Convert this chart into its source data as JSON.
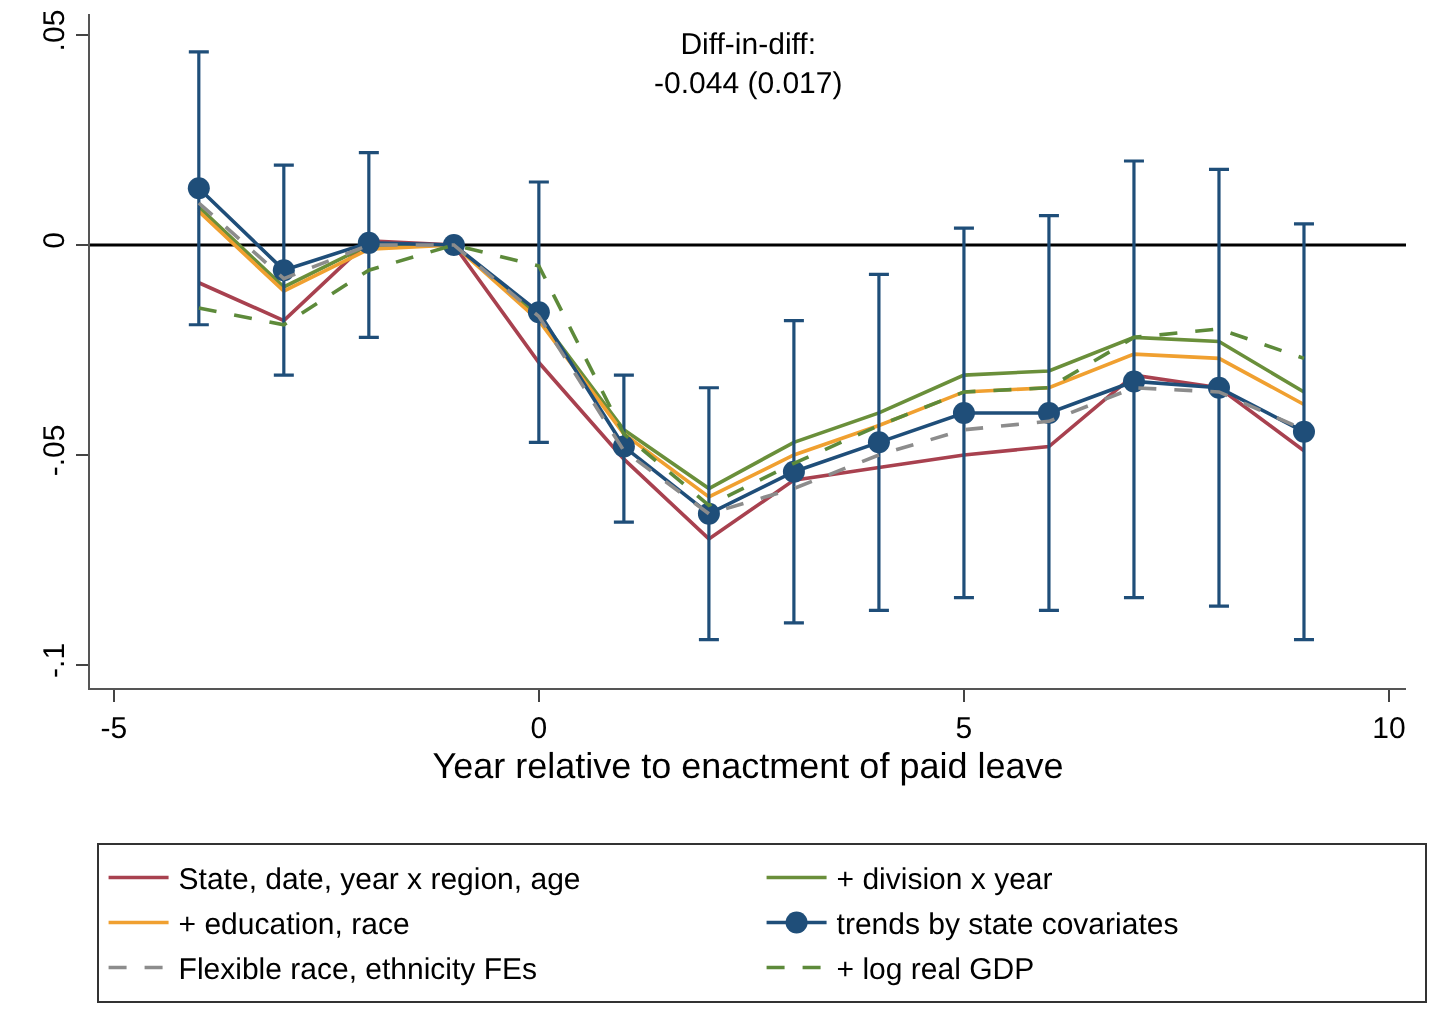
{
  "chart_data": {
    "type": "line",
    "xlabel": "Year relative to enactment of paid leave",
    "annotations": [
      "Diff-in-diff:\n-0.044 (0.017)"
    ],
    "x": [
      -4,
      -3,
      -2,
      -1,
      0,
      1,
      2,
      3,
      4,
      5,
      6,
      7,
      8,
      9
    ],
    "xlim": [
      -5.28,
      10.2
    ],
    "xticks": [
      -5,
      0,
      5,
      10
    ],
    "ylim": [
      -0.1055,
      0.055
    ],
    "yticks": [
      {
        "value": 0.05,
        "label": ".05"
      },
      0,
      {
        "value": -0.05,
        "label": "-.05"
      },
      {
        "value": -0.1,
        "label": "-.1"
      }
    ],
    "grid": false,
    "legend": "bottom",
    "marker": "none",
    "ref_lines": [
      {
        "axis": "y",
        "value": 0,
        "color": "#000000"
      }
    ],
    "series": [
      {
        "name": "State, date, year x region, age",
        "color": "#a8414f",
        "line_style": "solid",
        "values": [
          -0.009,
          -0.018,
          0.001,
          0,
          -0.028,
          -0.051,
          -0.07,
          -0.056,
          -0.053,
          -0.05,
          -0.048,
          -0.031,
          -0.034,
          -0.049
        ]
      },
      {
        "name": "+ division x year",
        "color": "#6a8f3a",
        "line_style": "solid",
        "values": [
          0.009,
          -0.01,
          0.0,
          0,
          -0.017,
          -0.044,
          -0.058,
          -0.047,
          -0.04,
          -0.031,
          -0.03,
          -0.022,
          -0.023,
          -0.035
        ]
      },
      {
        "name": "+ education, race",
        "color": "#f0a030",
        "line_style": "solid",
        "values": [
          0.008,
          -0.011,
          -0.001,
          0,
          -0.018,
          -0.045,
          -0.06,
          -0.05,
          -0.043,
          -0.035,
          -0.034,
          -0.026,
          -0.027,
          -0.038
        ]
      },
      {
        "name": "trends by state covariates",
        "color": "#1f4e79",
        "line_style": "solid",
        "marker": "circle",
        "values": [
          0.0135,
          -0.006,
          0.0005,
          0,
          -0.016,
          -0.048,
          -0.064,
          -0.054,
          -0.047,
          -0.04,
          -0.04,
          -0.0325,
          -0.034,
          -0.0445
        ],
        "errors": [
          [
            -0.019,
            0.046
          ],
          [
            -0.031,
            0.019
          ],
          [
            -0.022,
            0.022
          ],
          null,
          [
            -0.047,
            0.015
          ],
          [
            -0.066,
            -0.031
          ],
          [
            -0.094,
            -0.034
          ],
          [
            -0.09,
            -0.018
          ],
          [
            -0.087,
            -0.007
          ],
          [
            -0.084,
            0.004
          ],
          [
            -0.087,
            0.007
          ],
          [
            -0.084,
            0.02
          ],
          [
            -0.086,
            0.018
          ],
          [
            -0.094,
            0.005
          ]
        ]
      },
      {
        "name": "Flexible race, ethnicity FEs",
        "color": "#8c8c8c",
        "line_style": "dashed",
        "values": [
          0.01,
          -0.008,
          0.0,
          0,
          -0.017,
          -0.049,
          -0.064,
          -0.058,
          -0.05,
          -0.044,
          -0.042,
          -0.034,
          -0.035,
          -0.044
        ]
      },
      {
        "name": "+ log real GDP",
        "color": "#5d8a3a",
        "line_style": "dashed",
        "values": [
          -0.015,
          -0.019,
          -0.006,
          0,
          -0.005,
          -0.045,
          -0.062,
          -0.052,
          -0.043,
          -0.035,
          -0.034,
          -0.022,
          -0.02,
          -0.027
        ]
      }
    ]
  }
}
